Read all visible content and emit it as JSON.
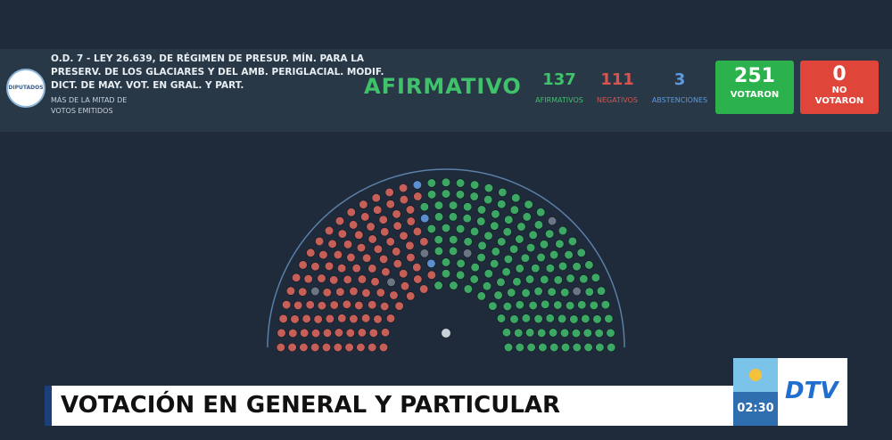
{
  "header": {
    "title_lines": [
      "O.D. 7 - LEY 26.639, DE RÉGIMEN DE PRESUP. MÍN. PARA LA",
      "PRESERV. DE LOS GLACIARES Y DEL AMB. PERIGLACIAL. MODIF.",
      "DICT. DE MAY. VOT. EN GRAL. Y PART."
    ],
    "subtitle_lines": [
      "MÁS DE LA MITAD DE",
      "VOTOS EMITIDOS"
    ],
    "logo_text": "DIPUTADOS",
    "result": "AFIRMATIVO"
  },
  "counts": {
    "afirmativos": {
      "value": 137,
      "label": "AFIRMATIVOS"
    },
    "negativos": {
      "value": 111,
      "label": "NEGATIVOS"
    },
    "abstenciones": {
      "value": 3,
      "label": "ABSTENCIONES"
    }
  },
  "votaron": {
    "value": 251,
    "label": "VOTARON"
  },
  "no_votaron": {
    "value": 0,
    "label": "NO VOTARON"
  },
  "hemicycle": {
    "absent": 6
  },
  "lower_third": {
    "title": "VOTACIÓN EN GENERAL Y PARTICULAR"
  },
  "bug": {
    "time": "02:30",
    "channel": "DTV"
  }
}
